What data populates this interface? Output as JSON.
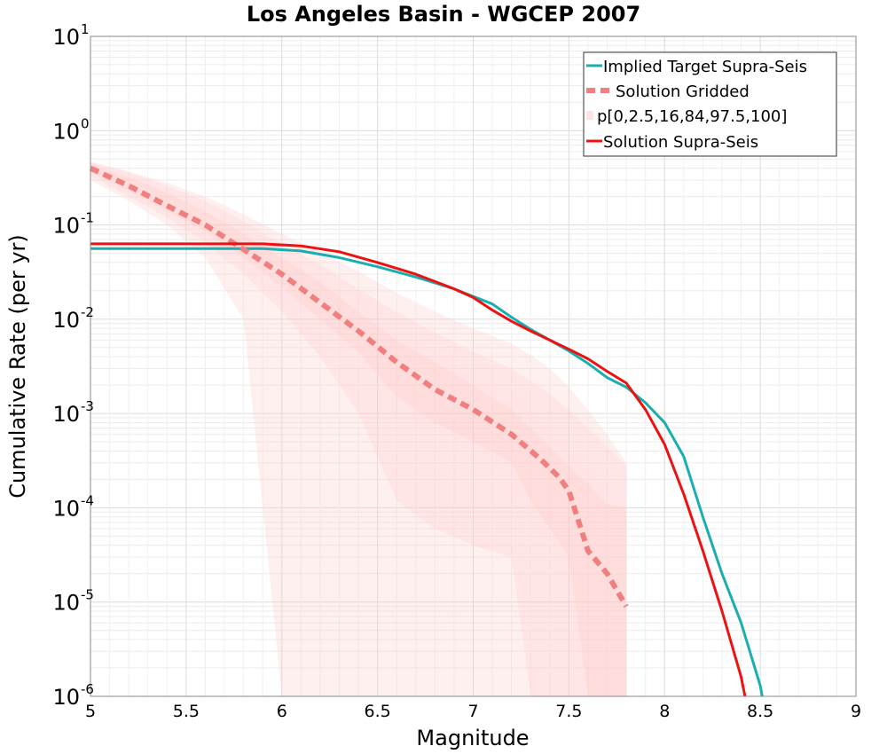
{
  "chart_data": {
    "type": "line",
    "title": "Los Angeles Basin - WGCEP 2007",
    "xlabel": "Magnitude",
    "ylabel": "Cumulative Rate (per yr)",
    "xlim": [
      5,
      9
    ],
    "ylim": [
      1e-06,
      10
    ],
    "yscale": "log",
    "grid": true,
    "legend_position": "top-right",
    "xticks": [
      "5",
      "5.5",
      "6",
      "6.5",
      "7",
      "7.5",
      "8",
      "8.5",
      "9"
    ],
    "yticks": [
      {
        "base": "10",
        "exp": "-6"
      },
      {
        "base": "10",
        "exp": "-5"
      },
      {
        "base": "10",
        "exp": "-4"
      },
      {
        "base": "10",
        "exp": "-3"
      },
      {
        "base": "10",
        "exp": "-2"
      },
      {
        "base": "10",
        "exp": "-1"
      },
      {
        "base": "10",
        "exp": "0"
      },
      {
        "base": "10",
        "exp": "1"
      }
    ],
    "colors": {
      "target": "#1aaeae",
      "gridded": "#f08080",
      "band": "#ffc8c8",
      "supra": "#ee1111"
    },
    "series": [
      {
        "name": "Implied Target Supra-Seis",
        "style": "solid",
        "color": "#1aaeae",
        "x": [
          5.0,
          5.5,
          5.9,
          6.1,
          6.3,
          6.5,
          6.7,
          6.9,
          7.1,
          7.2,
          7.3,
          7.4,
          7.5,
          7.6,
          7.7,
          7.8,
          7.9,
          8.0,
          8.1,
          8.2,
          8.3,
          8.4,
          8.5,
          8.51
        ],
        "y": [
          0.056,
          0.056,
          0.056,
          0.053,
          0.045,
          0.036,
          0.028,
          0.021,
          0.0145,
          0.0105,
          0.0078,
          0.006,
          0.0046,
          0.0034,
          0.0024,
          0.0019,
          0.0013,
          0.0008,
          0.00035,
          8e-05,
          2e-05,
          6e-06,
          1.3e-06,
          1e-06
        ]
      },
      {
        "name": "Solution Gridded",
        "style": "dashed",
        "color": "#f08080",
        "x": [
          5.0,
          5.2,
          5.4,
          5.6,
          5.8,
          6.0,
          6.2,
          6.4,
          6.6,
          6.8,
          7.0,
          7.2,
          7.35,
          7.45,
          7.5,
          7.6,
          7.7,
          7.8
        ],
        "y": [
          0.4,
          0.26,
          0.16,
          0.1,
          0.055,
          0.03,
          0.015,
          0.0075,
          0.0035,
          0.0018,
          0.0011,
          0.0006,
          0.00033,
          0.00021,
          0.00015,
          3.5e-05,
          2e-05,
          9e-06
        ]
      },
      {
        "name": "p[0,2.5,16,84,97.5,100]",
        "style": "band",
        "color": "#ffc8c8",
        "x": [
          5.0,
          5.2,
          5.4,
          5.6,
          5.8,
          6.0,
          6.2,
          6.4,
          6.6,
          6.8,
          7.0,
          7.2,
          7.3,
          7.4,
          7.5,
          7.6,
          7.7,
          7.8
        ],
        "p0": [
          0.3,
          0.18,
          0.1,
          0.045,
          0.01,
          1e-06,
          1e-06,
          1e-06,
          1e-06,
          1e-06,
          1e-06,
          1e-06,
          1e-06,
          1e-06,
          1e-06,
          1e-06,
          1e-06,
          1e-06
        ],
        "p2_5": [
          0.33,
          0.2,
          0.12,
          0.065,
          0.03,
          0.012,
          0.004,
          0.001,
          0.00012,
          6e-05,
          4e-05,
          3e-05,
          1e-06,
          1e-06,
          1e-06,
          1e-06,
          1e-06,
          1e-06
        ],
        "p16": [
          0.36,
          0.23,
          0.14,
          0.085,
          0.045,
          0.022,
          0.01,
          0.0045,
          0.0015,
          0.0008,
          0.0005,
          0.0003,
          0.00012,
          6e-05,
          3e-05,
          1e-06,
          1e-06,
          1e-06
        ],
        "p84": [
          0.44,
          0.32,
          0.22,
          0.14,
          0.08,
          0.045,
          0.025,
          0.012,
          0.006,
          0.0035,
          0.002,
          0.0011,
          0.0007,
          0.00045,
          0.00028,
          0.00018,
          0.00011,
          0.0001
        ],
        "p97_5": [
          0.46,
          0.36,
          0.26,
          0.18,
          0.11,
          0.062,
          0.038,
          0.021,
          0.012,
          0.0072,
          0.0045,
          0.003,
          0.0022,
          0.0016,
          0.0011,
          0.0007,
          0.00045,
          0.00028
        ],
        "p100": [
          0.47,
          0.37,
          0.28,
          0.2,
          0.13,
          0.08,
          0.052,
          0.032,
          0.019,
          0.012,
          0.008,
          0.0055,
          0.0042,
          0.003,
          0.0019,
          0.0011,
          0.0006,
          0.0003
        ]
      },
      {
        "name": "Solution Supra-Seis",
        "style": "solid",
        "color": "#ee1111",
        "x": [
          5.0,
          5.5,
          5.9,
          6.1,
          6.3,
          6.5,
          6.7,
          6.9,
          7.0,
          7.1,
          7.2,
          7.3,
          7.4,
          7.5,
          7.6,
          7.7,
          7.8,
          7.9,
          8.0,
          8.1,
          8.2,
          8.3,
          8.4,
          8.42
        ],
        "y": [
          0.063,
          0.063,
          0.063,
          0.06,
          0.052,
          0.04,
          0.03,
          0.021,
          0.017,
          0.0125,
          0.0095,
          0.0075,
          0.006,
          0.0048,
          0.0038,
          0.0028,
          0.0021,
          0.0011,
          0.00047,
          0.00014,
          3.5e-05,
          8e-06,
          1.6e-06,
          1e-06
        ]
      }
    ]
  }
}
